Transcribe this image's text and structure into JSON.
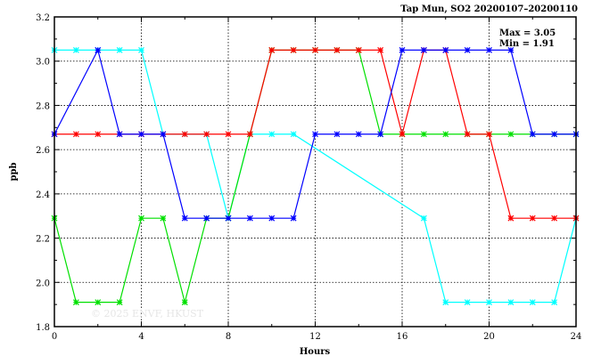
{
  "chart_data": {
    "type": "line",
    "title": "Tap Mun, SO2 20200107–20200110",
    "xlabel": "Hours",
    "ylabel": "ppb",
    "xlim": [
      0,
      24
    ],
    "ylim": [
      1.8,
      3.2
    ],
    "xticks": [
      "0",
      "4",
      "8",
      "12",
      "16",
      "20",
      "24"
    ],
    "yticks": [
      "1.8",
      "2.0",
      "2.2",
      "2.4",
      "2.6",
      "2.8",
      "3.0",
      "3.2"
    ],
    "grid": true,
    "annotations": [
      "Max = 3.05",
      "Min = 1.91"
    ],
    "watermark": "© 2025  ENVF, HKUST",
    "series": [
      {
        "name": "cyan",
        "color": "#00ffff",
        "x": [
          0,
          1,
          2,
          3,
          4,
          5,
          6,
          7,
          8,
          9,
          10,
          11,
          17,
          18,
          19,
          20,
          21,
          22,
          23,
          24
        ],
        "y": [
          3.05,
          3.05,
          3.05,
          3.05,
          3.05,
          2.67,
          2.67,
          2.67,
          2.29,
          2.67,
          2.67,
          2.67,
          2.29,
          1.91,
          1.91,
          1.91,
          1.91,
          1.91,
          1.91,
          2.29
        ]
      },
      {
        "name": "green",
        "color": "#00e000",
        "x": [
          0,
          1,
          2,
          3,
          4,
          5,
          6,
          7,
          8,
          9,
          10,
          11,
          12,
          13,
          14,
          15,
          16,
          17,
          18,
          19,
          20,
          21,
          22,
          23,
          24
        ],
        "y": [
          2.29,
          1.91,
          1.91,
          1.91,
          2.29,
          2.29,
          1.91,
          2.29,
          2.29,
          2.67,
          3.05,
          3.05,
          3.05,
          3.05,
          3.05,
          2.67,
          2.67,
          2.67,
          2.67,
          2.67,
          2.67,
          2.67,
          2.67,
          2.67,
          2.67
        ]
      },
      {
        "name": "red",
        "color": "#ff0000",
        "x": [
          0,
          1,
          2,
          3,
          4,
          5,
          6,
          7,
          8,
          9,
          10,
          11,
          12,
          13,
          14,
          15,
          16,
          17,
          18,
          19,
          20,
          21,
          22,
          23,
          24
        ],
        "y": [
          2.67,
          2.67,
          2.67,
          2.67,
          2.67,
          2.67,
          2.67,
          2.67,
          2.67,
          2.67,
          3.05,
          3.05,
          3.05,
          3.05,
          3.05,
          3.05,
          2.67,
          3.05,
          3.05,
          2.67,
          2.67,
          2.29,
          2.29,
          2.29,
          2.29
        ]
      },
      {
        "name": "blue",
        "color": "#0000ff",
        "x": [
          0,
          2,
          3,
          4,
          5,
          6,
          7,
          8,
          9,
          10,
          11,
          12,
          13,
          14,
          15,
          16,
          17,
          18,
          19,
          20,
          21,
          22,
          23,
          24
        ],
        "y": [
          2.67,
          3.05,
          2.67,
          2.67,
          2.67,
          2.29,
          2.29,
          2.29,
          2.29,
          2.29,
          2.29,
          2.67,
          2.67,
          2.67,
          2.67,
          3.05,
          3.05,
          3.05,
          3.05,
          3.05,
          3.05,
          2.67,
          2.67,
          2.67
        ]
      }
    ]
  }
}
